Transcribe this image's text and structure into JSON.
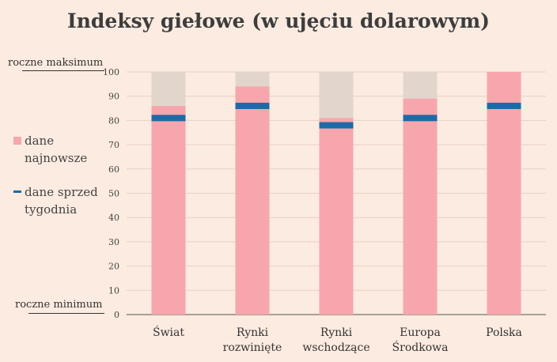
{
  "chart_data": {
    "type": "bar",
    "title": "Indeksy giełowe (w ujęciu dolarowym)",
    "categories": [
      [
        "Świat"
      ],
      [
        "Rynki",
        "rozwinięte"
      ],
      [
        "Rynki",
        "wschodzące"
      ],
      [
        "Europa",
        "Środkowa"
      ],
      [
        "Polska"
      ]
    ],
    "series": [
      {
        "name": "dane najnowsze",
        "values": [
          86,
          94,
          81,
          89,
          100
        ],
        "color": "#f7a6ad"
      },
      {
        "name": "dane sprzed tygodnia",
        "values": [
          81,
          86,
          78,
          81,
          86
        ],
        "color": "#1e6aa6"
      }
    ],
    "background_range": {
      "values": [
        100,
        100,
        100,
        100,
        100
      ],
      "color": "#e2d6cc"
    },
    "yticks": [
      0,
      10,
      20,
      30,
      40,
      50,
      60,
      70,
      80,
      90,
      100
    ],
    "ylim": [
      0,
      100
    ],
    "max_label": "roczne maksimum",
    "min_label": "roczne minimum",
    "grid": true,
    "legend_placement": "left"
  }
}
